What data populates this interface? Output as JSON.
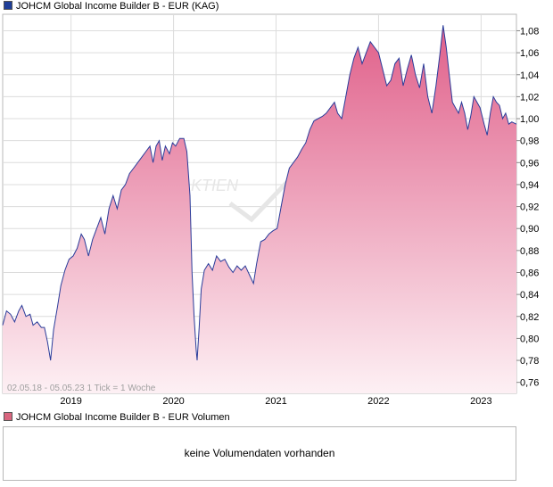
{
  "colors": {
    "line": "#2a3c9a",
    "fill_top": "#e0608a",
    "fill_bottom": "#fdf0f4",
    "price_swatch": "#1f3f99",
    "volume_swatch": "#d9667f",
    "grid": "#dcdcdc"
  },
  "legend": {
    "price": "JOHCM Global Income Builder B - EUR (KAG)",
    "volume": "JOHCM Global Income Builder B - EUR Volumen"
  },
  "range_note": "02.05.18 - 05.05.23   1 Tick = 1 Woche",
  "volume_message": "keine Volumendaten vorhanden",
  "chart_data": {
    "type": "area",
    "title": "",
    "xlabel": "",
    "ylabel": "",
    "ylim": [
      0.75,
      1.095
    ],
    "grid": true,
    "y_ticks": [
      "0,76",
      "0,78",
      "0,80",
      "0,82",
      "0,84",
      "0,86",
      "0,88",
      "0,90",
      "0,92",
      "0,94",
      "0,96",
      "0,98",
      "1,00",
      "1,02",
      "1,04",
      "1,06",
      "1,08"
    ],
    "x_ticks": [
      {
        "label": "2019",
        "year": 2019.0
      },
      {
        "label": "2020",
        "year": 2020.0
      },
      {
        "label": "2021",
        "year": 2021.0
      },
      {
        "label": "2022",
        "year": 2022.0
      },
      {
        "label": "2023",
        "year": 2023.0
      }
    ],
    "x_range": [
      2018.333,
      2023.345
    ],
    "series": [
      {
        "points": [
          [
            2018.333,
            0.812
          ],
          [
            2018.37,
            0.825
          ],
          [
            2018.41,
            0.822
          ],
          [
            2018.45,
            0.815
          ],
          [
            2018.49,
            0.825
          ],
          [
            2018.52,
            0.83
          ],
          [
            2018.56,
            0.82
          ],
          [
            2018.6,
            0.822
          ],
          [
            2018.63,
            0.812
          ],
          [
            2018.67,
            0.815
          ],
          [
            2018.71,
            0.81
          ],
          [
            2018.74,
            0.81
          ],
          [
            2018.77,
            0.797
          ],
          [
            2018.8,
            0.78
          ],
          [
            2018.83,
            0.808
          ],
          [
            2018.87,
            0.83
          ],
          [
            2018.9,
            0.848
          ],
          [
            2018.94,
            0.862
          ],
          [
            2018.98,
            0.872
          ],
          [
            2019.02,
            0.875
          ],
          [
            2019.06,
            0.882
          ],
          [
            2019.1,
            0.895
          ],
          [
            2019.13,
            0.89
          ],
          [
            2019.17,
            0.875
          ],
          [
            2019.21,
            0.89
          ],
          [
            2019.25,
            0.9
          ],
          [
            2019.29,
            0.91
          ],
          [
            2019.33,
            0.895
          ],
          [
            2019.37,
            0.918
          ],
          [
            2019.41,
            0.93
          ],
          [
            2019.45,
            0.918
          ],
          [
            2019.49,
            0.935
          ],
          [
            2019.53,
            0.94
          ],
          [
            2019.57,
            0.95
          ],
          [
            2019.61,
            0.955
          ],
          [
            2019.65,
            0.96
          ],
          [
            2019.69,
            0.965
          ],
          [
            2019.73,
            0.97
          ],
          [
            2019.77,
            0.975
          ],
          [
            2019.8,
            0.96
          ],
          [
            2019.83,
            0.975
          ],
          [
            2019.86,
            0.98
          ],
          [
            2019.89,
            0.962
          ],
          [
            2019.92,
            0.975
          ],
          [
            2019.96,
            0.968
          ],
          [
            2019.99,
            0.978
          ],
          [
            2020.02,
            0.975
          ],
          [
            2020.06,
            0.982
          ],
          [
            2020.1,
            0.982
          ],
          [
            2020.13,
            0.97
          ],
          [
            2020.16,
            0.93
          ],
          [
            2020.18,
            0.86
          ],
          [
            2020.2,
            0.82
          ],
          [
            2020.22,
            0.79
          ],
          [
            2020.23,
            0.78
          ],
          [
            2020.25,
            0.81
          ],
          [
            2020.27,
            0.845
          ],
          [
            2020.3,
            0.862
          ],
          [
            2020.34,
            0.868
          ],
          [
            2020.38,
            0.862
          ],
          [
            2020.42,
            0.875
          ],
          [
            2020.46,
            0.87
          ],
          [
            2020.5,
            0.872
          ],
          [
            2020.54,
            0.865
          ],
          [
            2020.58,
            0.86
          ],
          [
            2020.62,
            0.866
          ],
          [
            2020.66,
            0.862
          ],
          [
            2020.7,
            0.866
          ],
          [
            2020.74,
            0.858
          ],
          [
            2020.78,
            0.85
          ],
          [
            2020.81,
            0.868
          ],
          [
            2020.85,
            0.888
          ],
          [
            2020.89,
            0.89
          ],
          [
            2020.93,
            0.895
          ],
          [
            2020.97,
            0.898
          ],
          [
            2021.01,
            0.9
          ],
          [
            2021.05,
            0.92
          ],
          [
            2021.09,
            0.94
          ],
          [
            2021.13,
            0.955
          ],
          [
            2021.17,
            0.96
          ],
          [
            2021.21,
            0.965
          ],
          [
            2021.25,
            0.972
          ],
          [
            2021.29,
            0.978
          ],
          [
            2021.33,
            0.99
          ],
          [
            2021.37,
            0.998
          ],
          [
            2021.41,
            1.0
          ],
          [
            2021.45,
            1.002
          ],
          [
            2021.49,
            1.005
          ],
          [
            2021.53,
            1.01
          ],
          [
            2021.57,
            1.015
          ],
          [
            2021.6,
            1.005
          ],
          [
            2021.64,
            1.0
          ],
          [
            2021.68,
            1.02
          ],
          [
            2021.72,
            1.04
          ],
          [
            2021.76,
            1.055
          ],
          [
            2021.8,
            1.065
          ],
          [
            2021.84,
            1.05
          ],
          [
            2021.88,
            1.06
          ],
          [
            2021.92,
            1.07
          ],
          [
            2021.96,
            1.065
          ],
          [
            2022.0,
            1.06
          ],
          [
            2022.04,
            1.045
          ],
          [
            2022.08,
            1.03
          ],
          [
            2022.12,
            1.035
          ],
          [
            2022.16,
            1.05
          ],
          [
            2022.2,
            1.055
          ],
          [
            2022.24,
            1.03
          ],
          [
            2022.28,
            1.045
          ],
          [
            2022.32,
            1.058
          ],
          [
            2022.36,
            1.04
          ],
          [
            2022.4,
            1.028
          ],
          [
            2022.44,
            1.05
          ],
          [
            2022.48,
            1.02
          ],
          [
            2022.52,
            1.005
          ],
          [
            2022.56,
            1.03
          ],
          [
            2022.6,
            1.06
          ],
          [
            2022.63,
            1.085
          ],
          [
            2022.66,
            1.065
          ],
          [
            2022.69,
            1.04
          ],
          [
            2022.72,
            1.015
          ],
          [
            2022.75,
            1.01
          ],
          [
            2022.78,
            1.005
          ],
          [
            2022.81,
            1.015
          ],
          [
            2022.84,
            1.005
          ],
          [
            2022.87,
            0.99
          ],
          [
            2022.9,
            1.003
          ],
          [
            2022.93,
            1.02
          ],
          [
            2022.96,
            1.015
          ],
          [
            2022.99,
            1.01
          ],
          [
            2023.03,
            0.995
          ],
          [
            2023.06,
            0.985
          ],
          [
            2023.09,
            1.005
          ],
          [
            2023.12,
            1.02
          ],
          [
            2023.15,
            1.015
          ],
          [
            2023.18,
            1.012
          ],
          [
            2023.21,
            1.0
          ],
          [
            2023.24,
            1.005
          ],
          [
            2023.27,
            0.995
          ],
          [
            2023.3,
            0.997
          ],
          [
            2023.345,
            0.995
          ]
        ]
      }
    ]
  }
}
